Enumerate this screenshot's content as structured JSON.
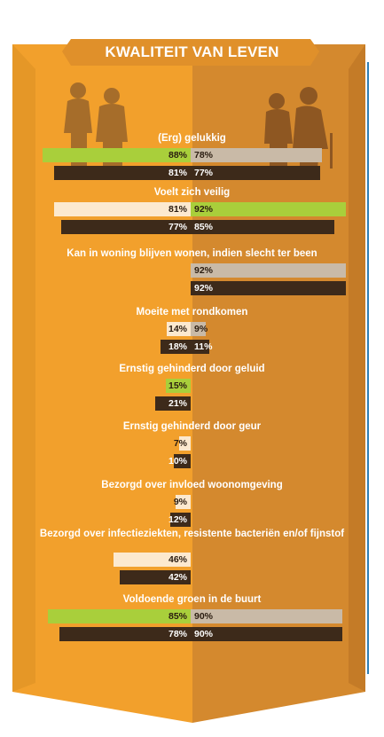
{
  "chart_data": {
    "type": "bar",
    "title": "KWALITEIT VAN LEVEN",
    "categories": [
      "(Erg) gelukkig",
      "Voelt zich veilig",
      "Kan in woning blijven wonen, indien slecht ter been",
      "Moeite met rondkomen",
      "Ernstig gehinderd door geluid",
      "Ernstig gehinderd door geur",
      "Bezorgd over invloed woonomgeving",
      "Bezorgd over infectieziekten, resistente bacteriën en/of fijnstof",
      "Voldoende groen in de buurt"
    ],
    "series": [
      {
        "values": [
          88,
          81,
          null,
          14,
          15,
          7,
          9,
          46,
          85
        ]
      },
      {
        "values": [
          81,
          77,
          null,
          18,
          21,
          10,
          12,
          42,
          78
        ]
      },
      {
        "values": [
          78,
          92,
          92,
          9,
          null,
          null,
          null,
          null,
          90
        ]
      },
      {
        "values": [
          77,
          85,
          92,
          11,
          null,
          null,
          null,
          null,
          90
        ]
      }
    ],
    "value_suffix": "%",
    "colors": {
      "background_left": "#f2a02c",
      "background_right": "#d4892e",
      "highlight": "#a9cf3b",
      "left_light": "#fce9cf",
      "right_light": "#c9baa7",
      "dark": "#3d2a1a",
      "people_left": "#a66d2a",
      "people_right": "#8e5722",
      "accent_edge": "#2f7fb5"
    },
    "highlighted_bars": [
      [
        0,
        0
      ],
      [
        1,
        2
      ],
      [
        4,
        0
      ],
      [
        8,
        0
      ]
    ]
  }
}
